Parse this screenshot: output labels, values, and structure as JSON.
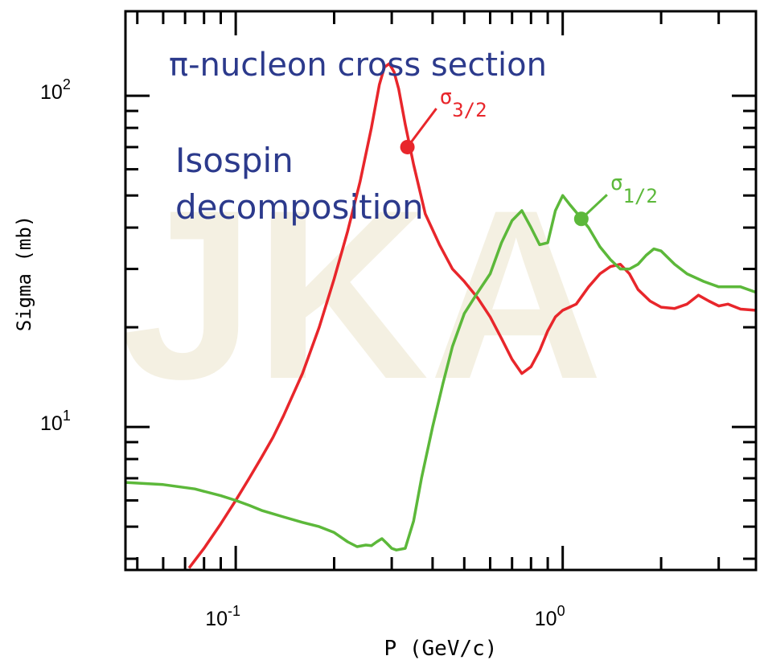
{
  "chart_data": {
    "type": "line",
    "title": "π-nucleon cross section",
    "subtitle": "Isospin decomposition",
    "subtitle_lines": [
      "Isospin",
      "decomposition"
    ],
    "xlabel": "P (GeV/c)",
    "ylabel": "Sigma (mb)",
    "xscale": "log",
    "yscale": "log",
    "xlim": [
      0.046,
      3.9
    ],
    "ylim": [
      3.7,
      180
    ],
    "x_ticks": [
      {
        "value": 0.1,
        "base": "10",
        "exp": "-1"
      },
      {
        "value": 1.0,
        "base": "10",
        "exp": "0"
      }
    ],
    "y_ticks": [
      {
        "value": 10,
        "base": "10",
        "exp": "1"
      },
      {
        "value": 100,
        "base": "10",
        "exp": "2"
      }
    ],
    "grid": false,
    "colors": {
      "sigma_3_2": "#e8262b",
      "sigma_1_2": "#5cb83a",
      "title": "#2c3a8c",
      "watermark": "#f2eddc"
    },
    "watermark_text": "JKA",
    "series": [
      {
        "name": "σ3/2",
        "label_symbol": "σ",
        "label_sub": "3/2",
        "color": "#e8262b",
        "marker_point": [
          0.335,
          70
        ],
        "points": [
          [
            0.072,
            3.75
          ],
          [
            0.08,
            4.3
          ],
          [
            0.09,
            5.1
          ],
          [
            0.1,
            6.0
          ],
          [
            0.11,
            7.0
          ],
          [
            0.12,
            8.1
          ],
          [
            0.13,
            9.3
          ],
          [
            0.14,
            10.8
          ],
          [
            0.16,
            14.5
          ],
          [
            0.18,
            20.0
          ],
          [
            0.2,
            28.0
          ],
          [
            0.22,
            39.0
          ],
          [
            0.24,
            55.0
          ],
          [
            0.26,
            80.0
          ],
          [
            0.275,
            108.0
          ],
          [
            0.285,
            122.0
          ],
          [
            0.295,
            125.0
          ],
          [
            0.305,
            118.0
          ],
          [
            0.315,
            105.0
          ],
          [
            0.33,
            82.0
          ],
          [
            0.35,
            62.0
          ],
          [
            0.38,
            44.0
          ],
          [
            0.42,
            35.5
          ],
          [
            0.46,
            30.0
          ],
          [
            0.5,
            27.5
          ],
          [
            0.55,
            24.5
          ],
          [
            0.6,
            21.5
          ],
          [
            0.65,
            18.5
          ],
          [
            0.7,
            16.0
          ],
          [
            0.75,
            14.5
          ],
          [
            0.8,
            15.2
          ],
          [
            0.85,
            17.0
          ],
          [
            0.9,
            19.5
          ],
          [
            0.95,
            21.5
          ],
          [
            1.0,
            22.5
          ],
          [
            1.05,
            23.0
          ],
          [
            1.1,
            23.5
          ],
          [
            1.2,
            26.5
          ],
          [
            1.3,
            29.0
          ],
          [
            1.4,
            30.5
          ],
          [
            1.5,
            31.0
          ],
          [
            1.6,
            29.0
          ],
          [
            1.7,
            26.0
          ],
          [
            1.85,
            24.0
          ],
          [
            2.0,
            23.0
          ],
          [
            2.2,
            22.8
          ],
          [
            2.4,
            23.5
          ],
          [
            2.6,
            25.0
          ],
          [
            2.8,
            24.0
          ],
          [
            3.0,
            23.2
          ],
          [
            3.2,
            23.5
          ],
          [
            3.5,
            22.7
          ],
          [
            3.9,
            22.5
          ]
        ]
      },
      {
        "name": "σ1/2",
        "label_symbol": "σ",
        "label_sub": "1/2",
        "color": "#5cb83a",
        "marker_point": [
          1.14,
          42.5
        ],
        "points": [
          [
            0.046,
            6.8
          ],
          [
            0.06,
            6.7
          ],
          [
            0.075,
            6.5
          ],
          [
            0.09,
            6.2
          ],
          [
            0.1,
            6.0
          ],
          [
            0.11,
            5.8
          ],
          [
            0.12,
            5.6
          ],
          [
            0.14,
            5.35
          ],
          [
            0.16,
            5.15
          ],
          [
            0.18,
            5.0
          ],
          [
            0.2,
            4.8
          ],
          [
            0.22,
            4.5
          ],
          [
            0.235,
            4.35
          ],
          [
            0.25,
            4.4
          ],
          [
            0.26,
            4.38
          ],
          [
            0.27,
            4.5
          ],
          [
            0.28,
            4.6
          ],
          [
            0.29,
            4.45
          ],
          [
            0.3,
            4.3
          ],
          [
            0.31,
            4.25
          ],
          [
            0.33,
            4.3
          ],
          [
            0.35,
            5.2
          ],
          [
            0.37,
            7.0
          ],
          [
            0.4,
            10.0
          ],
          [
            0.43,
            13.5
          ],
          [
            0.46,
            17.5
          ],
          [
            0.5,
            22.0
          ],
          [
            0.55,
            25.5
          ],
          [
            0.6,
            29.0
          ],
          [
            0.65,
            36.0
          ],
          [
            0.7,
            42.0
          ],
          [
            0.75,
            45.0
          ],
          [
            0.8,
            40.0
          ],
          [
            0.85,
            35.5
          ],
          [
            0.9,
            36.0
          ],
          [
            0.95,
            45.0
          ],
          [
            1.0,
            50.0
          ],
          [
            1.05,
            47.0
          ],
          [
            1.1,
            44.5
          ],
          [
            1.2,
            40.0
          ],
          [
            1.3,
            35.0
          ],
          [
            1.4,
            32.0
          ],
          [
            1.5,
            30.0
          ],
          [
            1.6,
            30.0
          ],
          [
            1.7,
            31.0
          ],
          [
            1.8,
            33.0
          ],
          [
            1.9,
            34.5
          ],
          [
            2.0,
            34.0
          ],
          [
            2.2,
            31.0
          ],
          [
            2.4,
            29.0
          ],
          [
            2.7,
            27.5
          ],
          [
            3.0,
            26.5
          ],
          [
            3.5,
            26.5
          ],
          [
            3.9,
            25.5
          ]
        ]
      }
    ]
  }
}
